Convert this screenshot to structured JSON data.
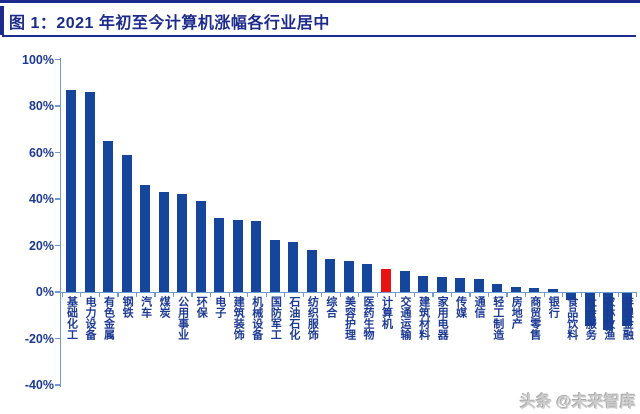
{
  "page": {
    "background": "#ffffff",
    "accent_color": "#1c2b8c"
  },
  "header": {
    "title": "图 1：2021 年初至今计算机涨幅各行业居中"
  },
  "watermark": {
    "text": "头条 @未来智库",
    "color": "#cccccc"
  },
  "chart_data": {
    "type": "bar",
    "title": "图 1：2021 年初至今计算机涨幅各行业居中",
    "unit": "percent",
    "categories": [
      "基础化工",
      "电力设备",
      "有色金属",
      "钢铁",
      "汽车",
      "煤炭",
      "公用事业",
      "环保",
      "电子",
      "建筑装饰",
      "机械设备",
      "国防军工",
      "石油石化",
      "纺织服饰",
      "综合",
      "美容护理",
      "医药生物",
      "计算机",
      "交通运输",
      "建筑材料",
      "家用电器",
      "传媒",
      "通信",
      "轻工制造",
      "房地产",
      "商贸零售",
      "银行",
      "食品饮料",
      "社会服务",
      "农林牧渔",
      "非银金融"
    ],
    "values": [
      87,
      86,
      65,
      59,
      46,
      43,
      42,
      39,
      32,
      31,
      30.5,
      22.5,
      21.5,
      18,
      14,
      13.5,
      12,
      10,
      9,
      7,
      6.5,
      6,
      5.5,
      3.5,
      2.2,
      1.8,
      1.2,
      -3,
      -14,
      -16,
      -14
    ],
    "highlight_index": 17,
    "highlight_category": "计算机",
    "bar_color": "#15469b",
    "highlight_color": "#e81414",
    "axis_color": "#6f9bd2",
    "label_color": "#1d3a94",
    "yticks": [
      100,
      80,
      60,
      40,
      20,
      0,
      -20,
      -40
    ],
    "ytick_suffix": "%",
    "ylim": [
      -40,
      100
    ],
    "grid": false,
    "legend": false
  }
}
